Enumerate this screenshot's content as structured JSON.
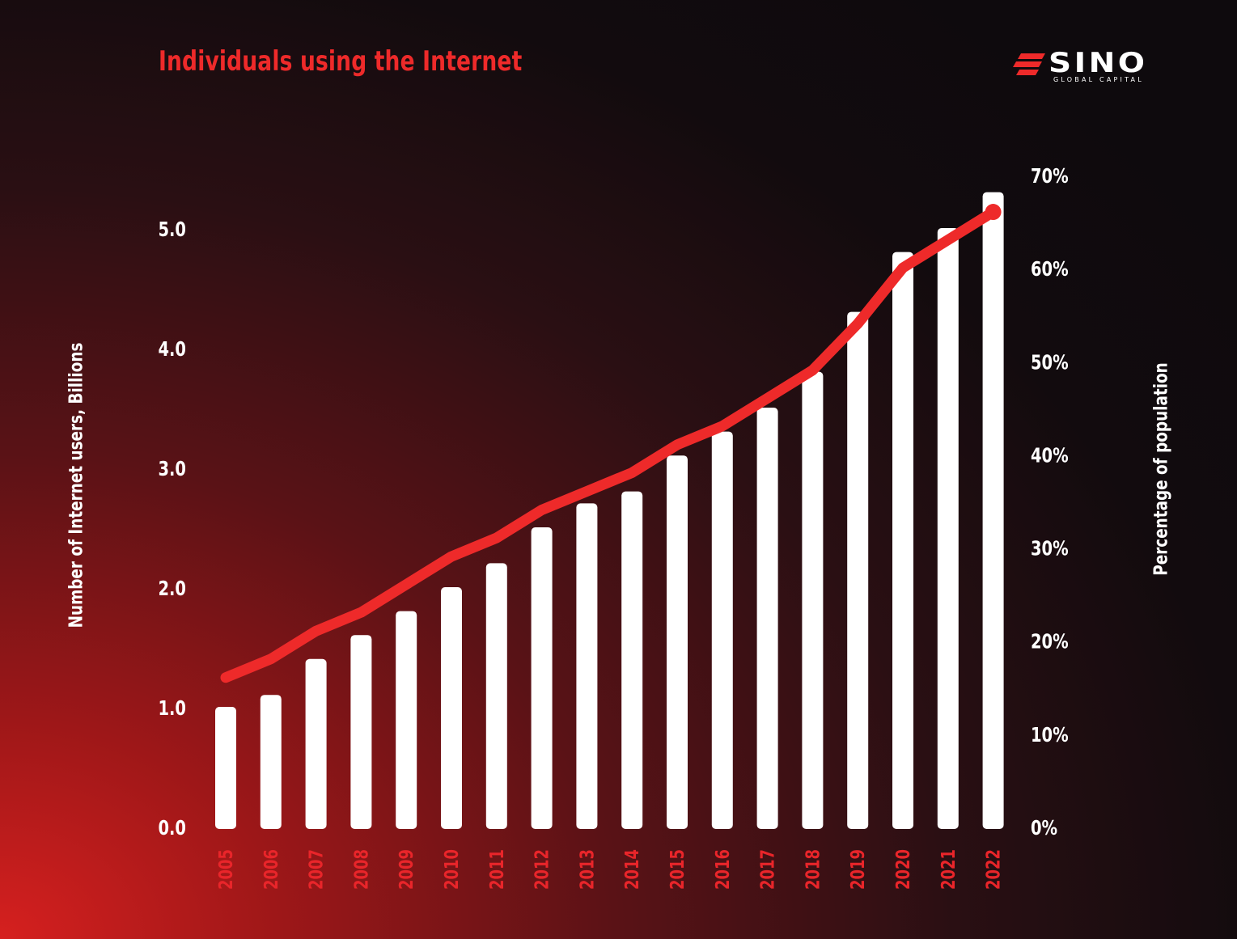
{
  "title": "Individuals using the Internet",
  "logo": {
    "word": "SINO",
    "sub": "GLOBAL CAPITAL"
  },
  "colors": {
    "accent": "#ee2a2a",
    "bars": "#ffffff",
    "background_dark": "#0e0a0d"
  },
  "chart_data": {
    "type": "bar",
    "title": "Individuals using the Internet",
    "categories": [
      "2005",
      "2006",
      "2007",
      "2008",
      "2009",
      "2010",
      "2011",
      "2012",
      "2013",
      "2014",
      "2015",
      "2016",
      "2017",
      "2018",
      "2019",
      "2020",
      "2021",
      "2022"
    ],
    "series": [
      {
        "type": "bar",
        "axis": "left",
        "values": [
          1.0,
          1.1,
          1.4,
          1.6,
          1.8,
          2.0,
          2.2,
          2.5,
          2.7,
          2.8,
          3.1,
          3.3,
          3.5,
          3.8,
          4.3,
          4.8,
          5.0,
          5.3
        ]
      },
      {
        "type": "line",
        "axis": "right",
        "values": [
          16,
          18,
          21,
          23,
          26,
          29,
          31,
          34,
          36,
          38,
          41,
          43,
          46,
          49,
          54,
          60,
          63,
          66
        ]
      }
    ],
    "ylabel": "Number of Internet users,  Billions",
    "y2label": "Percentage of population",
    "ylim": [
      0,
      5
    ],
    "y2lim": [
      0,
      70
    ],
    "yticks": [
      "0.0",
      "1.0",
      "2.0",
      "3.0",
      "4.0",
      "5.0"
    ],
    "y2ticks": [
      "0%",
      "10%",
      "20%",
      "30%",
      "40%",
      "50%",
      "60%",
      "70%"
    ],
    "grid": false,
    "legend": "none"
  }
}
